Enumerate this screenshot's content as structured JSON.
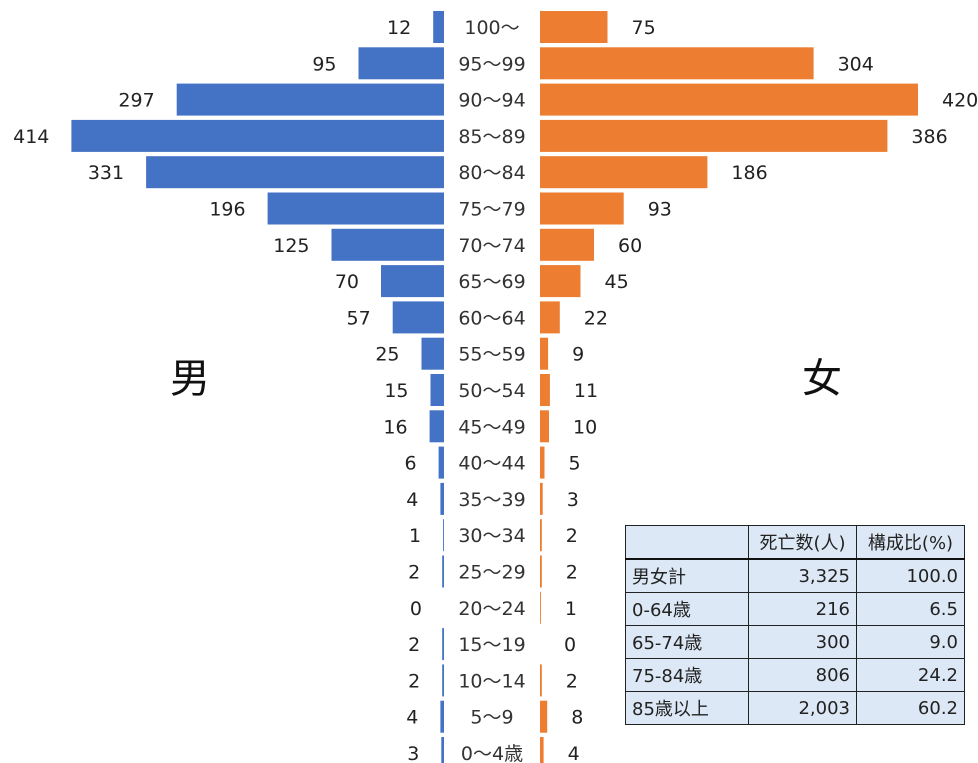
{
  "chart_data": {
    "type": "bar",
    "categories": [
      "100～",
      "95～99",
      "90～94",
      "85～89",
      "80～84",
      "75～79",
      "70～74",
      "65～69",
      "60～64",
      "55～59",
      "50～54",
      "45～49",
      "40～44",
      "35～39",
      "30～34",
      "25～29",
      "20～24",
      "15～19",
      "10～14",
      "5～9",
      "0～4歳"
    ],
    "series": [
      {
        "name": "男",
        "values": [
          12,
          95,
          297,
          414,
          331,
          196,
          125,
          70,
          57,
          25,
          15,
          16,
          6,
          4,
          1,
          2,
          0,
          2,
          2,
          4,
          3
        ]
      },
      {
        "name": "女",
        "values": [
          75,
          304,
          420,
          386,
          186,
          93,
          60,
          45,
          22,
          9,
          11,
          10,
          5,
          3,
          2,
          2,
          1,
          0,
          2,
          8,
          4
        ]
      }
    ],
    "colors": {
      "male": "#4472c4",
      "female": "#ed7d31"
    }
  },
  "labels": {
    "male": "男",
    "female": "女"
  },
  "summary_table": {
    "headers": [
      "",
      "死亡数(人)",
      "構成比(%)"
    ],
    "rows": [
      {
        "label": "男女計",
        "count": "3,325",
        "ratio": "100.0"
      },
      {
        "label": "0-64歳",
        "count": "216",
        "ratio": "6.5"
      },
      {
        "label": "65-74歳",
        "count": "300",
        "ratio": "9.0"
      },
      {
        "label": "75-84歳",
        "count": "806",
        "ratio": "24.2"
      },
      {
        "label": "85歳以上",
        "count": "2,003",
        "ratio": "60.2"
      }
    ]
  }
}
